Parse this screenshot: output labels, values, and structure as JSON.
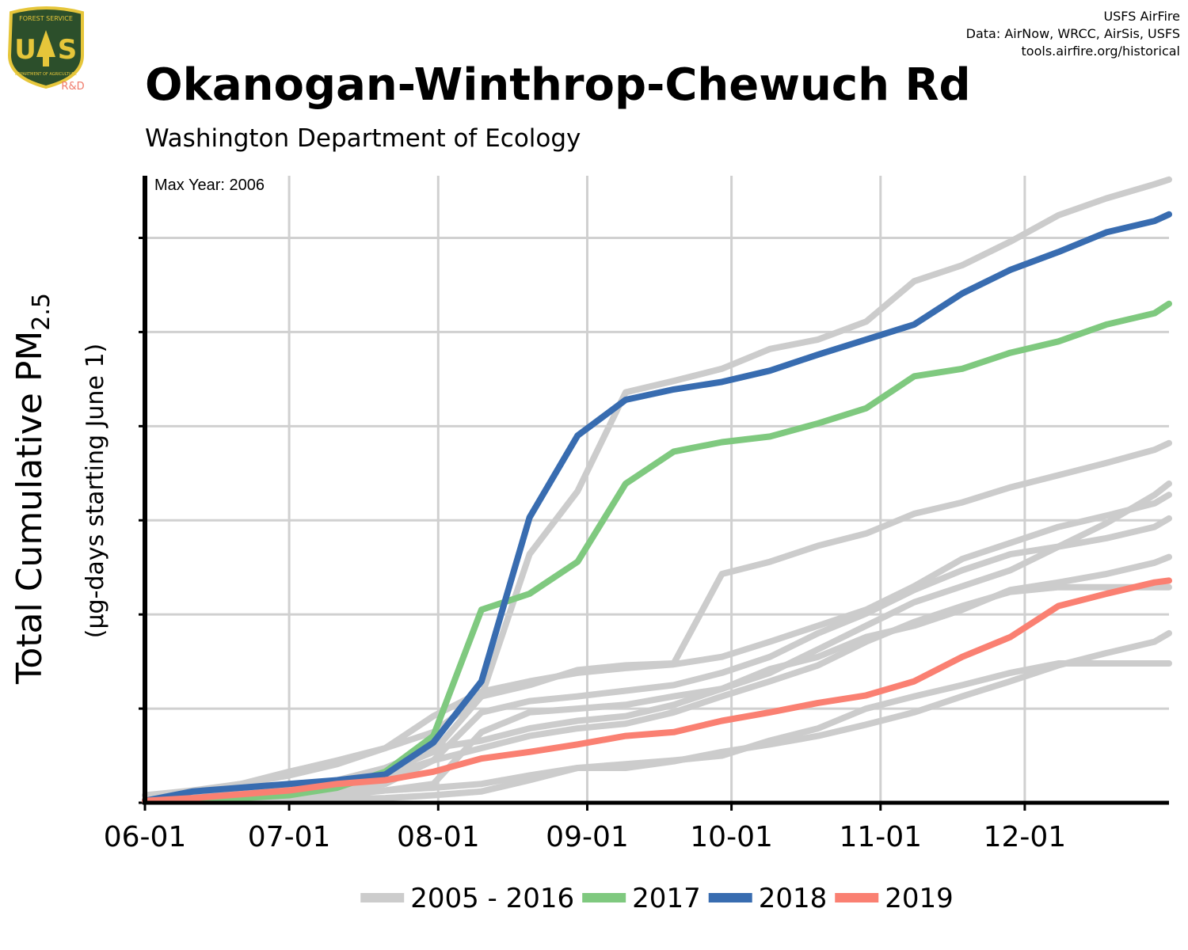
{
  "chart_data": {
    "type": "line",
    "title": "Okanogan-Winthrop-Chewuch Rd",
    "subtitle": "Washington Department of Ecology",
    "credits": [
      "USFS AirFire",
      "Data: AirNow, WRCC, AirSis, USFS",
      "tools.airfire.org/historical"
    ],
    "logo": {
      "top": "FOREST SERVICE",
      "letters": [
        "U",
        "S"
      ],
      "bottom": "DEPARTMENT OF AGRICULTURE",
      "tag": "R&D"
    },
    "annotation": "Max Year: 2006",
    "ylabel": {
      "text": "Total Cumulative PM",
      "sub": "2.5"
    },
    "ylabel2": "(µg-days starting June 1)",
    "x": [
      0,
      10,
      20,
      30,
      40,
      50,
      60,
      70,
      80,
      90,
      100,
      110,
      120,
      130,
      140,
      150,
      160,
      170,
      180,
      190,
      200,
      210,
      213
    ],
    "xlim": [
      0,
      213
    ],
    "xticks": [
      {
        "value": 0,
        "label": "06-01"
      },
      {
        "value": 30,
        "label": "07-01"
      },
      {
        "value": 61,
        "label": "08-01"
      },
      {
        "value": 92,
        "label": "09-01"
      },
      {
        "value": 122,
        "label": "10-01"
      },
      {
        "value": 153,
        "label": "11-01"
      },
      {
        "value": 183,
        "label": "12-01"
      }
    ],
    "ylim": [
      0,
      6.66
    ],
    "yticks": [
      0,
      1,
      2,
      3,
      4,
      5,
      6
    ],
    "grid": true,
    "legend": "bottom",
    "series": [
      {
        "name": "2005 - 2016",
        "color": "#cccccc",
        "values": [
          [
            0.08,
            0.13,
            0.2,
            0.29,
            0.41,
            0.58,
            0.75,
            1.13,
            2.64,
            3.31,
            4.36,
            4.48,
            4.61,
            4.82,
            4.92,
            5.11,
            5.54,
            5.71,
            5.96,
            6.24,
            6.42,
            6.57,
            6.62
          ],
          [
            0.03,
            0.08,
            0.13,
            0.16,
            0.24,
            0.33,
            0.54,
            1.13,
            1.25,
            1.41,
            1.46,
            1.48,
            2.43,
            2.56,
            2.73,
            2.86,
            3.07,
            3.19,
            3.35,
            3.48,
            3.61,
            3.75,
            3.82
          ],
          [
            0.02,
            0.03,
            0.04,
            0.05,
            0.09,
            0.13,
            0.2,
            0.75,
            0.96,
            1.0,
            1.04,
            1.13,
            1.21,
            1.38,
            1.63,
            1.88,
            2.13,
            2.3,
            2.47,
            2.72,
            2.97,
            3.27,
            3.39
          ],
          [
            0.02,
            0.03,
            0.07,
            0.12,
            0.2,
            0.29,
            0.45,
            0.96,
            1.08,
            1.13,
            1.19,
            1.25,
            1.38,
            1.55,
            1.8,
            2.01,
            2.26,
            2.47,
            2.64,
            2.72,
            2.81,
            2.93,
            3.02
          ],
          [
            0.02,
            0.03,
            0.08,
            0.13,
            0.24,
            0.37,
            0.58,
            0.66,
            0.79,
            0.87,
            0.92,
            1.04,
            1.21,
            1.42,
            1.55,
            1.76,
            1.88,
            2.05,
            2.26,
            2.34,
            2.43,
            2.55,
            2.61
          ],
          [
            0.02,
            0.03,
            0.03,
            0.05,
            0.12,
            0.2,
            0.45,
            0.58,
            0.71,
            0.79,
            0.84,
            0.96,
            1.13,
            1.29,
            1.46,
            1.71,
            1.92,
            2.09,
            2.24,
            2.29,
            2.29,
            2.29,
            2.29
          ],
          [
            0.02,
            0.02,
            0.03,
            0.03,
            0.04,
            0.05,
            0.08,
            0.12,
            0.24,
            0.37,
            0.41,
            0.45,
            0.5,
            0.66,
            0.79,
            1.0,
            1.13,
            1.25,
            1.38,
            1.48,
            1.48,
            1.48,
            1.48
          ],
          [
            0.02,
            0.03,
            0.03,
            0.04,
            0.08,
            0.13,
            0.16,
            0.2,
            0.29,
            0.37,
            0.37,
            0.44,
            0.54,
            0.62,
            0.71,
            0.83,
            0.96,
            1.13,
            1.29,
            1.46,
            1.59,
            1.71,
            1.8
          ],
          [
            0.03,
            0.12,
            0.2,
            0.33,
            0.45,
            0.58,
            0.92,
            1.18,
            1.29,
            1.38,
            1.43,
            1.47,
            1.55,
            1.71,
            1.88,
            2.05,
            2.3,
            2.59,
            2.76,
            2.93,
            3.05,
            3.18,
            3.27
          ]
        ]
      },
      {
        "name": "2017",
        "color": "#7fc97f",
        "values": [
          0.02,
          0.03,
          0.05,
          0.08,
          0.16,
          0.33,
          0.71,
          2.05,
          2.22,
          2.56,
          3.39,
          3.73,
          3.83,
          3.89,
          4.03,
          4.19,
          4.53,
          4.61,
          4.78,
          4.9,
          5.08,
          5.2,
          5.3
        ]
      },
      {
        "name": "2018",
        "color": "#386cb0",
        "values": [
          0.02,
          0.12,
          0.16,
          0.2,
          0.24,
          0.3,
          0.64,
          1.29,
          3.03,
          3.9,
          4.28,
          4.39,
          4.47,
          4.59,
          4.76,
          4.92,
          5.08,
          5.41,
          5.66,
          5.85,
          6.06,
          6.18,
          6.25
        ]
      },
      {
        "name": "2019",
        "color": "#fa8072",
        "values": [
          0.02,
          0.05,
          0.09,
          0.13,
          0.2,
          0.24,
          0.33,
          0.47,
          0.54,
          0.62,
          0.71,
          0.75,
          0.87,
          0.96,
          1.06,
          1.14,
          1.29,
          1.55,
          1.76,
          2.09,
          2.22,
          2.34,
          2.36
        ]
      }
    ]
  }
}
